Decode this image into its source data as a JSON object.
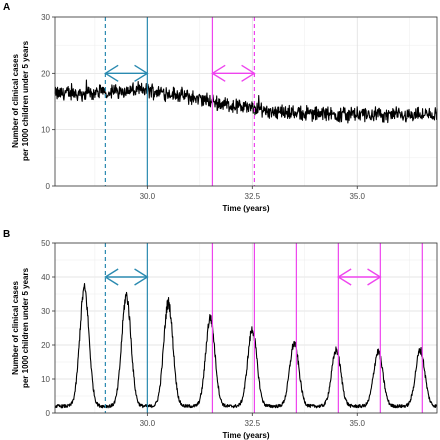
{
  "chart_data": [
    {
      "panel": "A",
      "type": "line",
      "xlabel": "Time (years)",
      "ylabel": [
        "Number of clinical cases",
        "per 1000 children under 5 years"
      ],
      "xlim": [
        27.8,
        36.9
      ],
      "ylim": [
        0,
        30
      ],
      "x_ticks": [
        "30.0",
        "32.5",
        "35.0"
      ],
      "y_ticks": [
        "0",
        "10",
        "20",
        "30"
      ],
      "grid": true,
      "series": [
        {
          "x": [
            27.8,
            28.0,
            28.5,
            29.0,
            29.5,
            30.0,
            30.5,
            31.0,
            31.5,
            32.0,
            32.5,
            33.0,
            33.5,
            34.0,
            34.5,
            35.0,
            35.5,
            36.0,
            36.5,
            36.9
          ],
          "values": [
            16.3,
            16.5,
            16.4,
            16.7,
            16.9,
            17.0,
            16.5,
            15.8,
            15.0,
            14.3,
            13.8,
            13.3,
            13.0,
            12.8,
            12.7,
            12.7,
            12.6,
            12.6,
            12.6,
            12.6
          ]
        }
      ],
      "intervention_lines": [
        {
          "x": 29.0,
          "color": "#2a8ab0",
          "style": "dashed"
        },
        {
          "x": 30.0,
          "color": "#2a8ab0",
          "style": "solid"
        },
        {
          "x": 31.55,
          "color": "#ee44ee",
          "style": "solid"
        },
        {
          "x": 32.55,
          "color": "#ee44ee",
          "style": "dashed"
        }
      ],
      "arrows": [
        {
          "x_from": 29.0,
          "x_to": 30.0,
          "y": 20,
          "color": "#2a8ab0"
        },
        {
          "x_from": 31.55,
          "x_to": 32.55,
          "y": 20,
          "color": "#ee44ee"
        }
      ]
    },
    {
      "panel": "B",
      "type": "line",
      "xlabel": "Time (years)",
      "ylabel": [
        "Number of clinical cases",
        "per 1000 children under 5 years"
      ],
      "xlim": [
        27.8,
        36.9
      ],
      "ylim": [
        0,
        50
      ],
      "x_ticks": [
        "30.0",
        "32.5",
        "35.0"
      ],
      "y_ticks": [
        "0",
        "10",
        "20",
        "30",
        "40",
        "50"
      ],
      "grid": true,
      "peaks": [
        {
          "x": 28.5,
          "value": 36.5
        },
        {
          "x": 29.5,
          "value": 34.5
        },
        {
          "x": 30.5,
          "value": 32.5
        },
        {
          "x": 31.5,
          "value": 28.0
        },
        {
          "x": 32.5,
          "value": 24.5
        },
        {
          "x": 33.5,
          "value": 20.5
        },
        {
          "x": 34.5,
          "value": 18.5
        },
        {
          "x": 35.5,
          "value": 18.0
        },
        {
          "x": 36.5,
          "value": 18.5
        }
      ],
      "troughs": [
        {
          "x": 29.0,
          "value": 2.0
        },
        {
          "x": 30.0,
          "value": 2.0
        },
        {
          "x": 31.0,
          "value": 2.0
        },
        {
          "x": 32.0,
          "value": 2.0
        },
        {
          "x": 33.0,
          "value": 2.0
        },
        {
          "x": 34.0,
          "value": 2.0
        },
        {
          "x": 35.0,
          "value": 2.0
        },
        {
          "x": 36.0,
          "value": 2.0
        }
      ],
      "intervention_lines": [
        {
          "x": 29.0,
          "color": "#2a8ab0",
          "style": "dashed"
        },
        {
          "x": 30.0,
          "color": "#2a8ab0",
          "style": "solid"
        },
        {
          "x": 31.55,
          "color": "#ee44ee",
          "style": "solid"
        },
        {
          "x": 32.55,
          "color": "#ee44ee",
          "style": "solid"
        },
        {
          "x": 33.55,
          "color": "#ee44ee",
          "style": "solid"
        },
        {
          "x": 34.55,
          "color": "#ee44ee",
          "style": "solid"
        },
        {
          "x": 35.55,
          "color": "#ee44ee",
          "style": "solid"
        },
        {
          "x": 36.55,
          "color": "#ee44ee",
          "style": "solid"
        }
      ],
      "arrows": [
        {
          "x_from": 29.0,
          "x_to": 30.0,
          "y": 40,
          "color": "#2a8ab0"
        },
        {
          "x_from": 34.55,
          "x_to": 35.55,
          "y": 40,
          "color": "#ee44ee"
        }
      ]
    }
  ]
}
